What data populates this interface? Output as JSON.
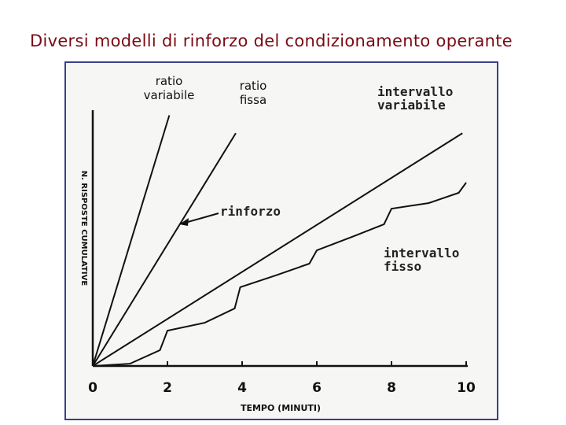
{
  "chart_data": {
    "type": "line",
    "title": "Diversi modelli di rinforzo del condizionamento operante",
    "x_label": "TEMPO (MINUTI)",
    "y_label": "N. RISPOSTE CUMULATIVE",
    "annotation": "rinforzo",
    "xlim": [
      0,
      10
    ],
    "xticks": [
      0,
      2,
      4,
      6,
      8,
      10
    ],
    "ylim": [
      0,
      100
    ],
    "series": [
      {
        "name": "ratio variabile",
        "color": "#111111",
        "x": [
          0,
          2.05
        ],
        "values": [
          0,
          98
        ]
      },
      {
        "name": "ratio fissa",
        "color": "#111111",
        "x": [
          0,
          3.83
        ],
        "values": [
          0,
          91
        ]
      },
      {
        "name": "intervallo variabile",
        "color": "#111111",
        "x": [
          0,
          9.9
        ],
        "values": [
          0,
          91
        ]
      },
      {
        "name": "intervallo fisso",
        "color": "#111111",
        "x": [
          0,
          1,
          1.8,
          2,
          3,
          3.8,
          3.95,
          4.9,
          5.8,
          6,
          7,
          7.8,
          8,
          9,
          9.8,
          10
        ],
        "values": [
          0,
          0.9,
          6.2,
          13.8,
          16.9,
          22.5,
          30.8,
          35.4,
          40,
          45.2,
          50.8,
          55.4,
          61.5,
          63.7,
          67.7,
          71.7
        ]
      }
    ]
  }
}
